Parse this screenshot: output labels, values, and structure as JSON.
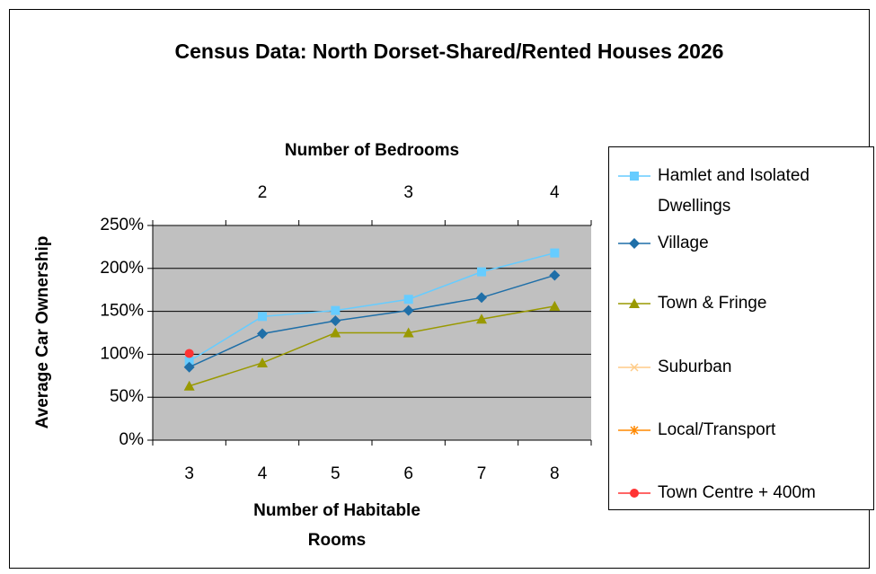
{
  "chart_data": {
    "type": "line",
    "title": "Census Data: North Dorset-Shared/Rented Houses 2026",
    "x_label": "Number of Habitable Rooms",
    "x2_label": "Number of Bedrooms",
    "y_label": "Average Car Ownership",
    "categories": [
      3,
      4,
      5,
      6,
      7,
      8
    ],
    "categories2": [
      null,
      2,
      null,
      3,
      null,
      4
    ],
    "ylim": [
      0,
      250
    ],
    "yticks": [
      {
        "value": 0,
        "label": "0%"
      },
      {
        "value": 50,
        "label": "50%"
      },
      {
        "value": 100,
        "label": "100%"
      },
      {
        "value": 150,
        "label": "150%"
      },
      {
        "value": 200,
        "label": "200%"
      },
      {
        "value": 250,
        "label": "250%"
      }
    ],
    "grid": true,
    "legend": "right",
    "series": [
      {
        "name": "Hamlet and Isolated Dwellings",
        "color": "#66ccff",
        "marker": "square",
        "values": [
          92,
          144,
          151,
          164,
          196,
          218
        ]
      },
      {
        "name": "Village",
        "color": "#1f6fa8",
        "marker": "diamond",
        "values": [
          85,
          124,
          139,
          151,
          166,
          192
        ]
      },
      {
        "name": "Town & Fringe",
        "color": "#999900",
        "marker": "triangle",
        "values": [
          63,
          90,
          125,
          125,
          141,
          156
        ]
      },
      {
        "name": "Suburban",
        "color": "#ffcc88",
        "marker": "x",
        "values": [
          null,
          null,
          null,
          null,
          null,
          null
        ]
      },
      {
        "name": "Local/Transport",
        "color": "#ff8800",
        "marker": "star",
        "values": [
          null,
          null,
          null,
          null,
          null,
          null
        ]
      },
      {
        "name": "Town Centre + 400m",
        "color": "#ff3333",
        "marker": "circle",
        "values": [
          101,
          null,
          null,
          null,
          null,
          null
        ]
      }
    ]
  }
}
